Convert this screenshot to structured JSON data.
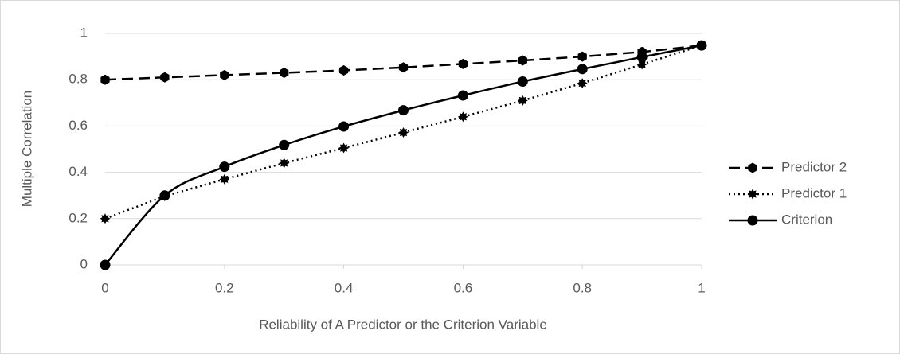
{
  "chart_data": {
    "type": "line",
    "x_label": "Reliability of A Predictor or the Criterion Variable",
    "y_label": "Multiple Correlation",
    "x": [
      0,
      0.1,
      0.2,
      0.3,
      0.4,
      0.5,
      0.6,
      0.7,
      0.8,
      0.9,
      1
    ],
    "series": [
      {
        "name": "Predictor 2",
        "color": "#000000",
        "line_style": "dashed",
        "marker": "hexagon",
        "values": [
          0.8,
          0.81,
          0.82,
          0.83,
          0.84,
          0.853,
          0.868,
          0.883,
          0.9,
          0.92,
          0.948
        ]
      },
      {
        "name": "Predictor 1",
        "color": "#000000",
        "line_style": "dotted",
        "marker": "star",
        "values": [
          0.2,
          0.297,
          0.37,
          0.44,
          0.505,
          0.572,
          0.64,
          0.71,
          0.785,
          0.866,
          0.948
        ]
      },
      {
        "name": "Criterion",
        "color": "#000000",
        "line_style": "solid",
        "marker": "circle",
        "smooth": true,
        "values": [
          0,
          0.3,
          0.424,
          0.518,
          0.598,
          0.668,
          0.732,
          0.792,
          0.846,
          0.898,
          0.948
        ]
      }
    ],
    "xlim": [
      0,
      1
    ],
    "xticks": [
      0,
      0.2,
      0.4,
      0.6,
      0.8,
      1
    ],
    "ylim": [
      0,
      1
    ],
    "yticks": [
      0,
      0.2,
      0.4,
      0.6,
      0.8,
      1
    ],
    "grid": true,
    "legend": "right"
  }
}
